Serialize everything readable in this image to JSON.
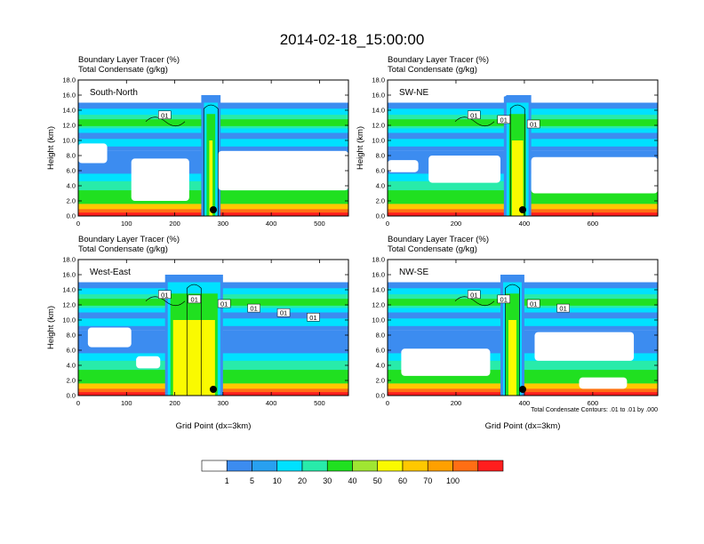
{
  "title": "2014-02-18_15:00:00",
  "colors": [
    "#ffffff",
    "#3c8cf0",
    "#28a0f0",
    "#00e1ff",
    "#28ebaa",
    "#20e020",
    "#a0e632",
    "#fafa00",
    "#ffc800",
    "#ffa000",
    "#ff6e14",
    "#ff1e1e"
  ],
  "contour_note": "Total Condensate Contours: .01 to .01 by .000",
  "chart_data": {
    "type": "heatmap",
    "levels": [
      "1",
      "5",
      "10",
      "20",
      "30",
      "40",
      "50",
      "60",
      "70",
      "100"
    ],
    "panels": [
      {
        "label": "South-North",
        "header1": "Boundary Layer Tracer   (%)",
        "header2": "Total Condensate   (g/kg)",
        "xlabel": "",
        "ylabel": "Height (km)",
        "xlim": [
          0,
          560
        ],
        "ylim": [
          0,
          18
        ],
        "xticks": [
          "0",
          "100",
          "200",
          "300",
          "400",
          "500"
        ],
        "yticks": [
          "0.0",
          "2.0",
          "4.0",
          "6.0",
          "8.0",
          "10.0",
          "12.0",
          "14.0",
          "16.0",
          "18.0"
        ],
        "contour_labels": [
          "01"
        ],
        "marker_x": 280,
        "tower": [
          255,
          295
        ],
        "gaps": [
          {
            "x0": 0,
            "x1": 120,
            "y0": 15.8,
            "y1": 18
          },
          {
            "x0": 300,
            "x1": 560,
            "y0": 15.5,
            "y1": 18
          },
          {
            "x0": 290,
            "x1": 560,
            "y0": 3.4,
            "y1": 8.6
          },
          {
            "x0": 110,
            "x1": 230,
            "y0": 2.0,
            "y1": 7.6
          },
          {
            "x0": 0,
            "x1": 60,
            "y0": 7.0,
            "y1": 9.6
          }
        ]
      },
      {
        "label": "SW-NE",
        "header1": "Boundary Layer Tracer   (%)",
        "header2": "Total Condensate   (g/kg)",
        "xlabel": "",
        "ylabel": "Height (km)",
        "xlim": [
          0,
          790
        ],
        "ylim": [
          0,
          18
        ],
        "xticks": [
          "0",
          "200",
          "400",
          "600"
        ],
        "yticks": [
          "0.0",
          "2.0",
          "4.0",
          "6.0",
          "8.0",
          "10.0",
          "12.0",
          "14.0",
          "16.0",
          "18.0"
        ],
        "contour_labels": [
          "01",
          "01",
          "01"
        ],
        "marker_x": 395,
        "tower": [
          340,
          420
        ],
        "gaps": [
          {
            "x0": 0,
            "x1": 350,
            "y0": 15.8,
            "y1": 18
          },
          {
            "x0": 450,
            "x1": 790,
            "y0": 16.0,
            "y1": 18
          },
          {
            "x0": 420,
            "x1": 790,
            "y0": 3.0,
            "y1": 7.8
          },
          {
            "x0": 120,
            "x1": 330,
            "y0": 4.4,
            "y1": 8.0
          },
          {
            "x0": 0,
            "x1": 90,
            "y0": 5.8,
            "y1": 7.4
          }
        ]
      },
      {
        "label": "West-East",
        "header1": "Boundary Layer Tracer   (%)",
        "header2": "Total Condensate   (g/kg)",
        "xlabel": "Grid Point (dx=3km)",
        "ylabel": "Height (km)",
        "xlim": [
          0,
          560
        ],
        "ylim": [
          0,
          18
        ],
        "xticks": [
          "0",
          "100",
          "200",
          "300",
          "400",
          "500"
        ],
        "yticks": [
          "0.0",
          "2.0",
          "4.0",
          "6.0",
          "8.0",
          "10.0",
          "12.0",
          "14.0",
          "16.0",
          "18.0"
        ],
        "contour_labels": [
          "01",
          "01",
          "01",
          "01",
          "01",
          "01"
        ],
        "marker_x": 280,
        "tower": [
          180,
          300
        ],
        "gaps": [
          {
            "x0": 20,
            "x1": 110,
            "y0": 6.4,
            "y1": 9.0
          },
          {
            "x0": 120,
            "x1": 170,
            "y0": 3.6,
            "y1": 5.2
          }
        ]
      },
      {
        "label": "NW-SE",
        "header1": "Boundary Layer Tracer   (%)",
        "header2": "Total Condensate   (g/kg)",
        "xlabel": "Grid Point (dx=3km)",
        "ylabel": "",
        "xlim": [
          0,
          790
        ],
        "ylim": [
          0,
          18
        ],
        "xticks": [
          "0",
          "200",
          "400",
          "600"
        ],
        "yticks": [
          "0.0",
          "2.0",
          "4.0",
          "6.0",
          "8.0",
          "10.0",
          "12.0",
          "14.0",
          "16.0",
          "18.0"
        ],
        "contour_labels": [
          "01",
          "01",
          "01",
          "01"
        ],
        "marker_x": 395,
        "tower": [
          330,
          400
        ],
        "gaps": [
          {
            "x0": 0,
            "x1": 790,
            "y0": 16.2,
            "y1": 18
          },
          {
            "x0": 430,
            "x1": 720,
            "y0": 4.6,
            "y1": 8.4
          },
          {
            "x0": 40,
            "x1": 300,
            "y0": 2.6,
            "y1": 6.2
          },
          {
            "x0": 560,
            "x1": 700,
            "y0": 0.9,
            "y1": 2.4
          }
        ]
      }
    ]
  }
}
